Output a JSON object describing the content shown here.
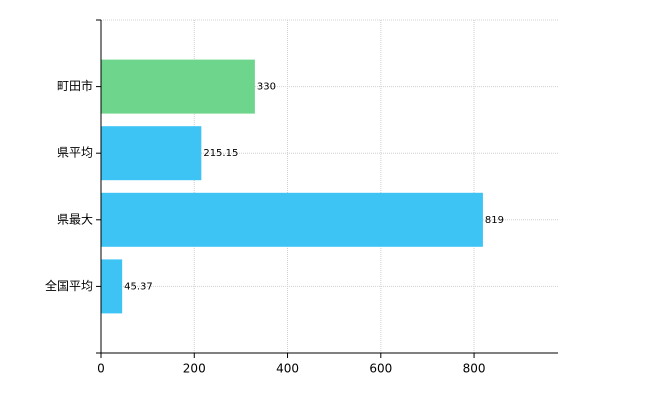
{
  "chart_data": {
    "type": "bar",
    "orientation": "horizontal",
    "categories": [
      "町田市",
      "県平均",
      "県最大",
      "全国平均"
    ],
    "values": [
      330,
      215.15,
      819,
      45.37
    ],
    "colors": [
      "#6dd58c",
      "#3ec3f5",
      "#3ec3f5",
      "#3ec3f5"
    ],
    "xlim": [
      0,
      980
    ],
    "xticks": [
      0,
      200,
      400,
      600,
      800
    ],
    "grid": true
  }
}
